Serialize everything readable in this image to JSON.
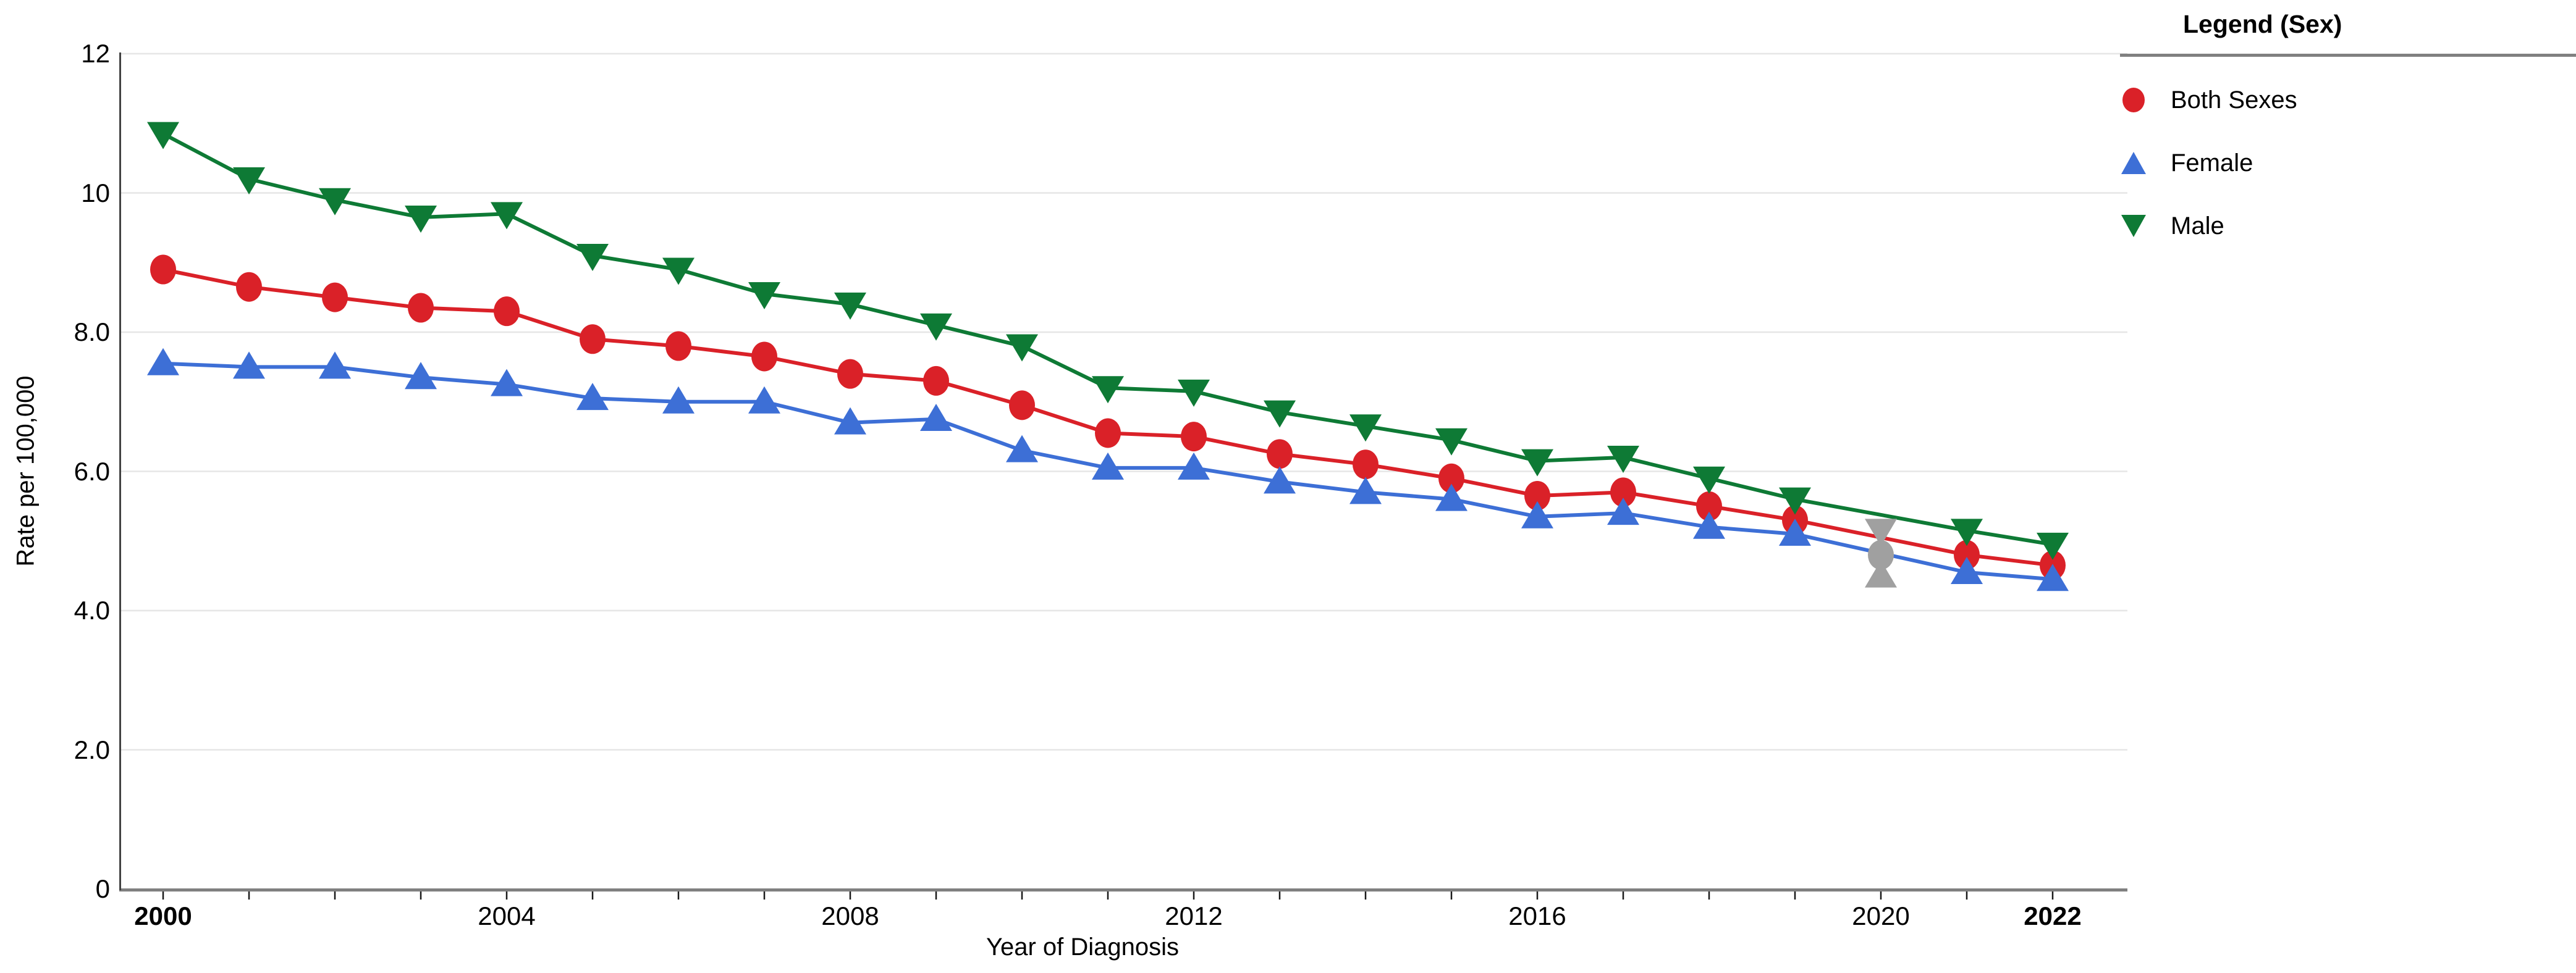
{
  "chart_data": {
    "type": "line",
    "title": "",
    "xlabel": "Year of Diagnosis",
    "ylabel": "Rate per 100,000",
    "x": [
      2000,
      2001,
      2002,
      2003,
      2004,
      2005,
      2006,
      2007,
      2008,
      2009,
      2010,
      2011,
      2012,
      2013,
      2014,
      2015,
      2016,
      2017,
      2018,
      2019,
      2020,
      2021,
      2022
    ],
    "series": [
      {
        "name": "Both Sexes",
        "color": "#da2128",
        "marker": "circle",
        "values": [
          8.9,
          8.65,
          8.5,
          8.35,
          8.3,
          7.9,
          7.8,
          7.65,
          7.4,
          7.3,
          6.95,
          6.55,
          6.5,
          6.25,
          6.1,
          5.9,
          5.65,
          5.7,
          5.5,
          5.3,
          4.8,
          4.8,
          4.65
        ]
      },
      {
        "name": "Female",
        "color": "#3d6fd6",
        "marker": "triangle-up",
        "values": [
          7.55,
          7.5,
          7.5,
          7.35,
          7.25,
          7.05,
          7.0,
          7.0,
          6.7,
          6.75,
          6.3,
          6.05,
          6.05,
          5.85,
          5.7,
          5.6,
          5.35,
          5.4,
          5.2,
          5.1,
          4.5,
          4.55,
          4.45
        ]
      },
      {
        "name": "Male",
        "color": "#0e7a35",
        "marker": "triangle-down",
        "values": [
          10.85,
          10.2,
          9.9,
          9.65,
          9.7,
          9.1,
          8.9,
          8.55,
          8.4,
          8.1,
          7.8,
          7.2,
          7.15,
          6.85,
          6.65,
          6.45,
          6.15,
          6.2,
          5.9,
          5.6,
          5.15,
          5.15,
          4.95
        ]
      }
    ],
    "gray_marker_year": 2020,
    "gray_marker_color": "#a0a0a0",
    "ylim": [
      0,
      12
    ],
    "yticks": [
      {
        "v": 0,
        "label": "0"
      },
      {
        "v": 2,
        "label": "2.0"
      },
      {
        "v": 4,
        "label": "4.0"
      },
      {
        "v": 6,
        "label": "6.0"
      },
      {
        "v": 8,
        "label": "8.0"
      },
      {
        "v": 10,
        "label": "10"
      },
      {
        "v": 12,
        "label": "12"
      }
    ],
    "xticks_labeled": [
      {
        "year": 2000,
        "label": "2000",
        "bold": true
      },
      {
        "year": 2004,
        "label": "2004",
        "bold": false
      },
      {
        "year": 2008,
        "label": "2008",
        "bold": false
      },
      {
        "year": 2012,
        "label": "2012",
        "bold": false
      },
      {
        "year": 2016,
        "label": "2016",
        "bold": false
      },
      {
        "year": 2020,
        "label": "2020",
        "bold": false
      },
      {
        "year": 2022,
        "label": "2022",
        "bold": true
      }
    ],
    "grid": true,
    "legend": {
      "title": "Legend (Sex)",
      "position": "right"
    },
    "colors": {
      "gridline": "#e6e6e6",
      "x_axis_line": "#808080",
      "y_axis_line": "#424242",
      "tick_mark": "#1a1a1a"
    }
  }
}
